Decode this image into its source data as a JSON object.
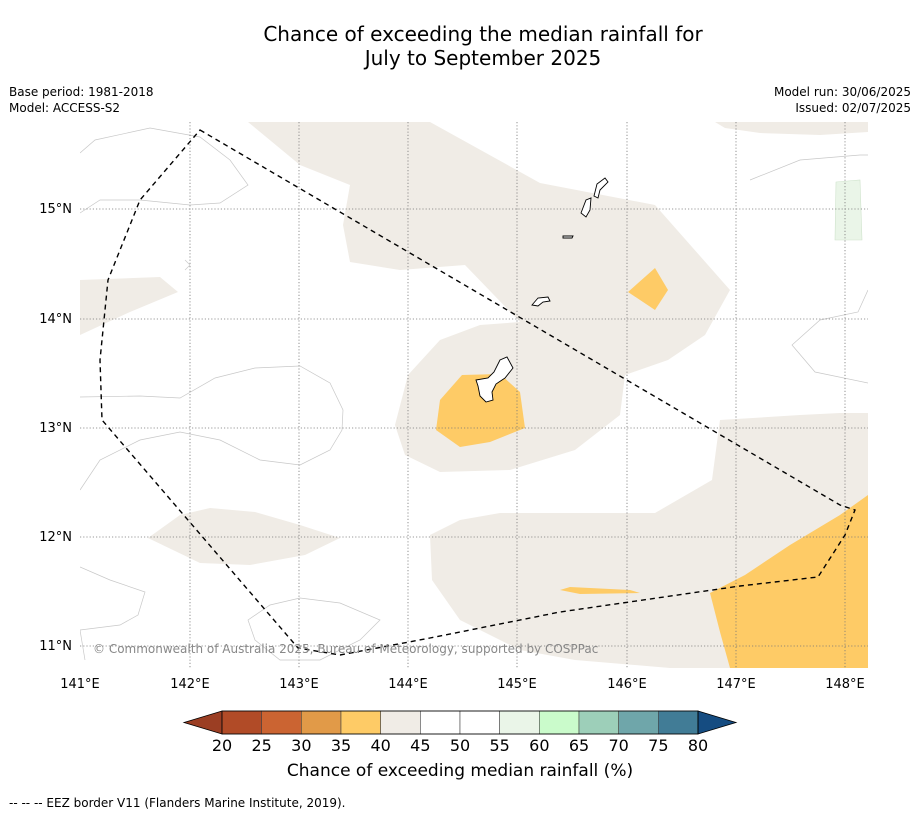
{
  "title": {
    "line1": "Chance of exceeding the median rainfall for",
    "line2": "July to September 2025"
  },
  "meta_left": {
    "base_period": "Base period: 1981-2018",
    "model": "Model: ACCESS-S2"
  },
  "meta_right": {
    "model_run": "Model run: 30/06/2025",
    "issued": "Issued: 02/07/2025"
  },
  "map": {
    "lon_ticks": [
      "141°E",
      "142°E",
      "143°E",
      "144°E",
      "145°E",
      "146°E",
      "147°E",
      "148°E"
    ],
    "lat_ticks": [
      "15°N",
      "14°N",
      "13°N",
      "12°N",
      "11°N"
    ],
    "copyright": "© Commonwealth of Australia 2025, Bureau of Meteorology, supported by COSPPac",
    "colors": {
      "neutral": "#f0ece6",
      "dry_35_40": "#fecb66",
      "wet_55_60": "#eaf5e8"
    }
  },
  "colorbar": {
    "ticks": [
      "20",
      "25",
      "30",
      "35",
      "40",
      "45",
      "50",
      "55",
      "60",
      "65",
      "70",
      "75",
      "80"
    ],
    "colors": [
      "#9b3e23",
      "#b14b27",
      "#cb6432",
      "#e19a48",
      "#fecb66",
      "#f0ece6",
      "#ffffff",
      "#ffffff",
      "#eaf5e8",
      "#cafbcb",
      "#9dcfb9",
      "#6fa6aa",
      "#417c96",
      "#154c81"
    ],
    "label": "Chance of exceeding median rainfall (%)"
  },
  "footer": "--  --  -- EEZ border V11 (Flanders Marine Institute, 2019)."
}
